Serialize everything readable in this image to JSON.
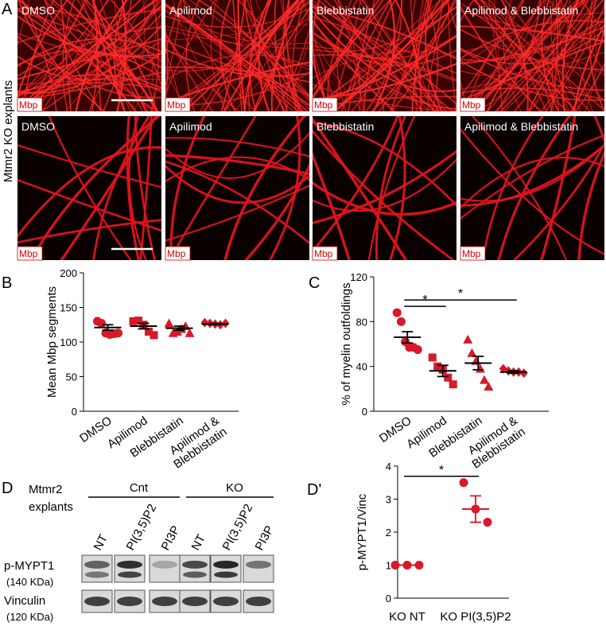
{
  "panel_a": {
    "label": "A",
    "side_label": "Mtmr2 KO explants",
    "rows": [
      [
        "DMSO",
        "Apilimod",
        "Blebbistatin",
        "Apilimod & Blebbistatin"
      ],
      [
        "DMSO",
        "Apilimod",
        "Blebbistatin",
        "Apilimod & Blebbistatin"
      ]
    ],
    "stain": "Mbp"
  },
  "panel_d": {
    "label": "D",
    "genotype_label": [
      "Mtmr2",
      "explants"
    ],
    "groups": [
      "Cnt",
      "KO"
    ],
    "lanes": [
      [
        "NT",
        "PI(3,5)P2",
        "PI3P"
      ],
      [
        "NT",
        "PI(3,5)P2",
        "PI3P"
      ]
    ],
    "blots": [
      {
        "name": "p-MYPT1",
        "size": "(140 KDa)"
      },
      {
        "name": "Vinculin",
        "size": "(120 KDa)"
      }
    ]
  },
  "chart_data": [
    {
      "type": "dot",
      "panel_label": "B",
      "ylabel": "Mean Mbp segments",
      "categories": [
        [
          "DMSO"
        ],
        [
          "Apilimod"
        ],
        [
          "Blebbistatin"
        ],
        [
          "Apilimod &",
          "Blebbistatin"
        ]
      ],
      "points": [
        [
          130,
          127,
          113,
          111,
          112,
          113
        ],
        [
          130,
          131,
          125,
          115,
          110
        ],
        [
          127,
          113,
          115,
          119,
          123,
          113
        ],
        [
          128,
          127,
          126,
          125,
          127
        ]
      ],
      "means": [
        121,
        123,
        120,
        126
      ],
      "errors": [
        4,
        4,
        3,
        1
      ],
      "markers": [
        "circle",
        "square",
        "triangle",
        "diamond"
      ],
      "color": "#d7192a",
      "mean_color": "#000000",
      "ylim": [
        0,
        200
      ],
      "yticks": [
        0,
        50,
        100,
        150,
        200
      ]
    },
    {
      "type": "dot",
      "panel_label": "C",
      "ylabel": "% of myelin outfoldings",
      "categories": [
        [
          "DMSO"
        ],
        [
          "Apilimod"
        ],
        [
          "Blebbistatin"
        ],
        [
          "Apilimod &",
          "Blebbistatin"
        ]
      ],
      "points": [
        [
          88,
          80,
          62,
          57,
          57,
          55
        ],
        [
          48,
          40,
          37,
          30,
          24
        ],
        [
          64,
          52,
          45,
          38,
          28,
          22
        ],
        [
          38,
          36,
          35,
          35,
          34
        ]
      ],
      "means": [
        66,
        36,
        43,
        35
      ],
      "errors": [
        5,
        5,
        6,
        1
      ],
      "markers": [
        "circle",
        "square",
        "triangle",
        "diamond"
      ],
      "color": "#d7192a",
      "mean_color": "#000000",
      "ylim": [
        0,
        120
      ],
      "yticks": [
        0,
        40,
        80,
        120
      ],
      "significance": [
        {
          "groups": [
            0,
            1
          ],
          "label": "*"
        },
        {
          "groups": [
            0,
            3
          ],
          "label": "*"
        }
      ]
    },
    {
      "type": "dot",
      "panel_label": "D'",
      "ylabel": "p-MYPT1/Vinc",
      "categories": [
        [
          "KO NT"
        ],
        [
          "KO PI(3,5)P2"
        ]
      ],
      "points": [
        [
          1,
          1,
          1
        ],
        [
          3.5,
          2.7,
          2.3
        ]
      ],
      "means": [
        1,
        2.7
      ],
      "errors": [
        0,
        0.4
      ],
      "markers": [
        "circle",
        "circle"
      ],
      "color": "#d7192a",
      "mean_color": "#d7192a",
      "ylim": [
        0,
        4
      ],
      "yticks": [
        0,
        1,
        2,
        3,
        4
      ],
      "significance": [
        {
          "groups": [
            0,
            1
          ],
          "label": "*"
        }
      ]
    }
  ]
}
